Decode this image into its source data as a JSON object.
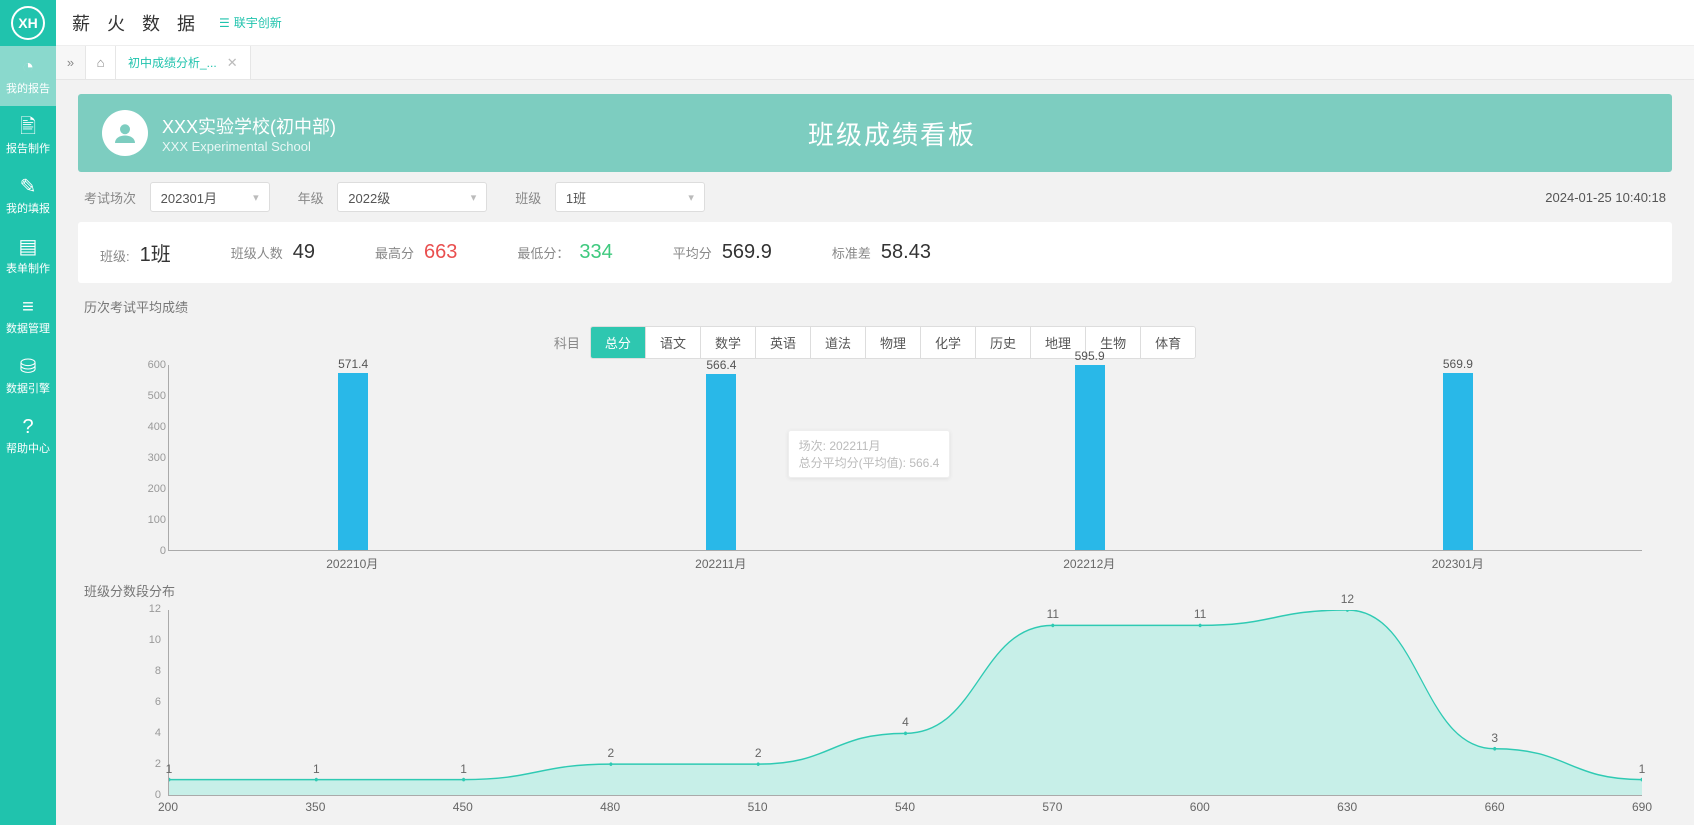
{
  "brand": "薪 火 数 据",
  "brand_link": "联宇创新",
  "sidebar": [
    {
      "label": "我的报告",
      "icon": "◔"
    },
    {
      "label": "报告制作",
      "icon": "🖹"
    },
    {
      "label": "我的填报",
      "icon": "✎"
    },
    {
      "label": "表单制作",
      "icon": "▤"
    },
    {
      "label": "数据管理",
      "icon": "≡"
    },
    {
      "label": "数据引擎",
      "icon": "⛁"
    },
    {
      "label": "帮助中心",
      "icon": "?"
    }
  ],
  "tab_title": "初中成绩分析_...",
  "banner": {
    "school_cn": "XXX实验学校(初中部)",
    "school_en": "XXX Experimental School",
    "title": "班级成绩看板"
  },
  "filters": {
    "exam_label": "考试场次",
    "exam_value": "202301月",
    "grade_label": "年级",
    "grade_value": "2022级",
    "class_label": "班级",
    "class_value": "1班",
    "timestamp": "2024-01-25 10:40:18"
  },
  "stats": {
    "class_label": "班级:",
    "class_value": "1班",
    "count_label": "班级人数",
    "count_value": "49",
    "max_label": "最高分",
    "max_value": "663",
    "min_label": "最低分：",
    "min_value": "334",
    "avg_label": "平均分",
    "avg_value": "569.9",
    "std_label": "标准差",
    "std_value": "58.43"
  },
  "section1_title": "历次考试平均成绩",
  "subject_label": "科目",
  "subjects": [
    "总分",
    "语文",
    "数学",
    "英语",
    "道法",
    "物理",
    "化学",
    "历史",
    "地理",
    "生物",
    "体育"
  ],
  "bar_chart": {
    "ylim": [
      0,
      600
    ],
    "ytick_step": 100,
    "bar_color": "#29b8e8",
    "categories": [
      "202210月",
      "202211月",
      "202212月",
      "202301月"
    ],
    "values": [
      571.4,
      566.4,
      595.9,
      569.9
    ],
    "tooltip": {
      "line1": "场次: 202211月",
      "line2": "总分平均分(平均值): 566.4"
    }
  },
  "section2_title": "班级分数段分布",
  "area_chart": {
    "ylim": [
      0,
      12
    ],
    "ytick_step": 2,
    "line_color": "#2fcab3",
    "fill_color": "#bfeee6",
    "categories": [
      "200",
      "350",
      "450",
      "480",
      "510",
      "540",
      "570",
      "600",
      "630",
      "660",
      "690"
    ],
    "values": [
      1,
      1,
      1,
      2,
      2,
      4,
      11,
      11,
      12,
      3,
      1
    ]
  }
}
